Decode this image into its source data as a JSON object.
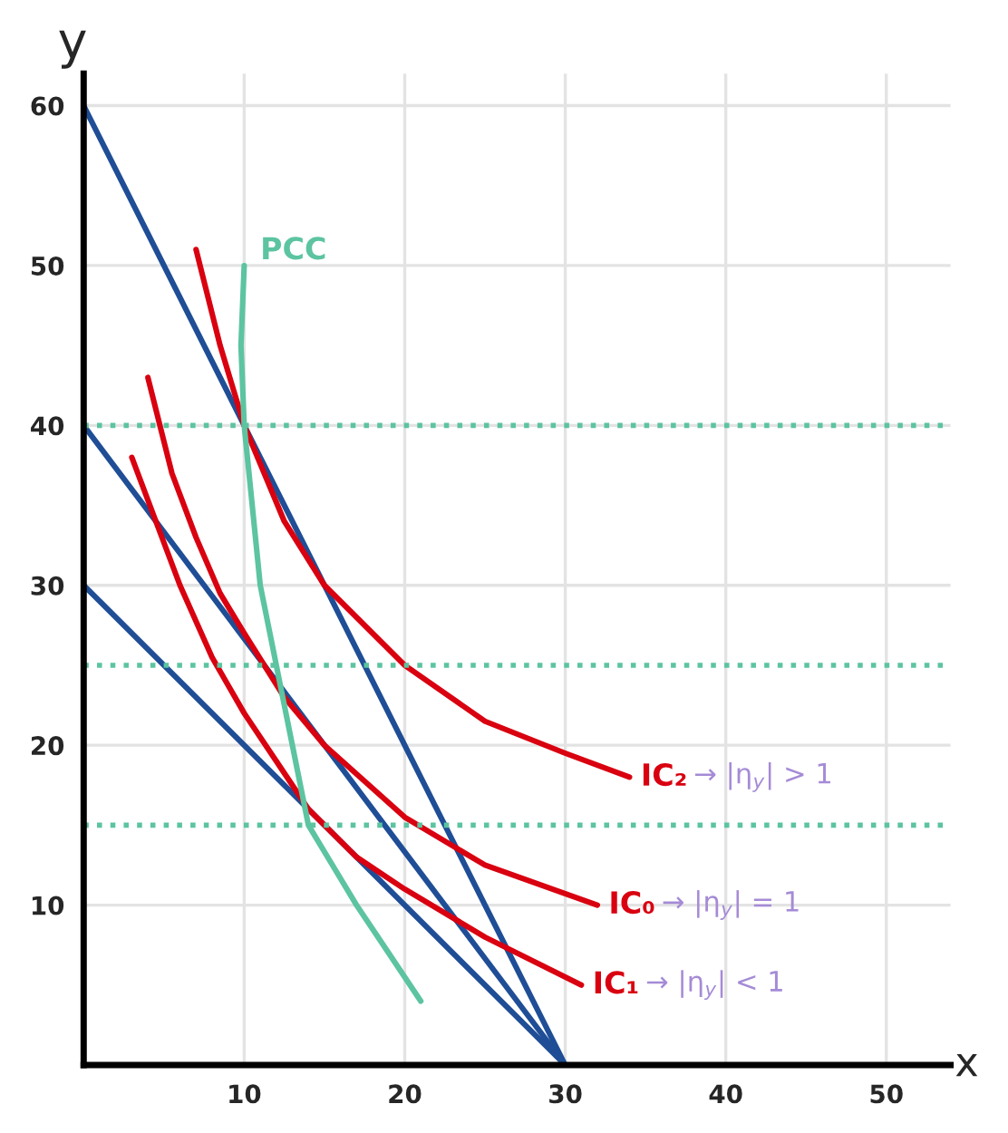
{
  "chart_data": {
    "type": "line",
    "xlabel": "x",
    "ylabel": "y",
    "xlim": [
      0,
      54
    ],
    "ylim": [
      0,
      62
    ],
    "xticks": [
      10,
      20,
      30,
      40,
      50
    ],
    "yticks": [
      10,
      20,
      30,
      40,
      50,
      60
    ],
    "grid": true,
    "legend": false,
    "marker": "none",
    "line_style": "solid",
    "series": [
      {
        "name": null,
        "color": "#1f4e96",
        "x": [
          0,
          30
        ],
        "values": [
          60,
          0
        ]
      },
      {
        "name": null,
        "color": "#1f4e96",
        "x": [
          0,
          30
        ],
        "values": [
          40,
          0
        ]
      },
      {
        "name": null,
        "color": "#1f4e96",
        "x": [
          0,
          30
        ],
        "values": [
          30,
          0
        ]
      },
      {
        "name": "IC₂",
        "color": "#d90010",
        "x": [
          7,
          8.5,
          10,
          12.5,
          15,
          20,
          25,
          30,
          34
        ],
        "values": [
          51,
          45,
          40,
          34,
          30,
          25,
          21.5,
          19.5,
          18
        ]
      },
      {
        "name": "IC₀",
        "color": "#d90010",
        "x": [
          4,
          5.5,
          7,
          8.5,
          10,
          12.5,
          15,
          20,
          25,
          32
        ],
        "values": [
          43,
          37,
          33,
          29.5,
          27,
          23,
          20,
          15.5,
          12.5,
          10
        ]
      },
      {
        "name": "IC₁",
        "color": "#d90010",
        "x": [
          3,
          4.5,
          6,
          8,
          10,
          12,
          14,
          17,
          20,
          25,
          31
        ],
        "values": [
          38,
          34,
          30,
          25.5,
          22,
          19,
          16,
          13,
          11,
          8,
          5
        ]
      },
      {
        "name": "PCC",
        "color": "#5cc4a0",
        "x": [
          10,
          9.8,
          10,
          10.5,
          11,
          12,
          13,
          14,
          15.5,
          17,
          19,
          21
        ],
        "values": [
          50,
          45,
          40,
          35,
          30,
          25,
          20,
          15,
          12.5,
          10,
          7,
          4
        ]
      }
    ],
    "ref_lines": [
      {
        "axis": "y",
        "value": 40,
        "color": "#5cc4a0",
        "line_style": "dotted"
      },
      {
        "axis": "y",
        "value": 25,
        "color": "#5cc4a0",
        "line_style": "dotted"
      },
      {
        "axis": "y",
        "value": 15,
        "color": "#5cc4a0",
        "line_style": "dotted"
      }
    ],
    "annotations": [
      {
        "text": "→ |η$_{y}$| > 1",
        "x": 34,
        "y": 18
      },
      {
        "text": "→ |η$_{y}$| = 1",
        "x": 32,
        "y": 10
      },
      {
        "text": "→ |η$_{y}$| < 1",
        "x": 31,
        "y": 5
      }
    ]
  }
}
